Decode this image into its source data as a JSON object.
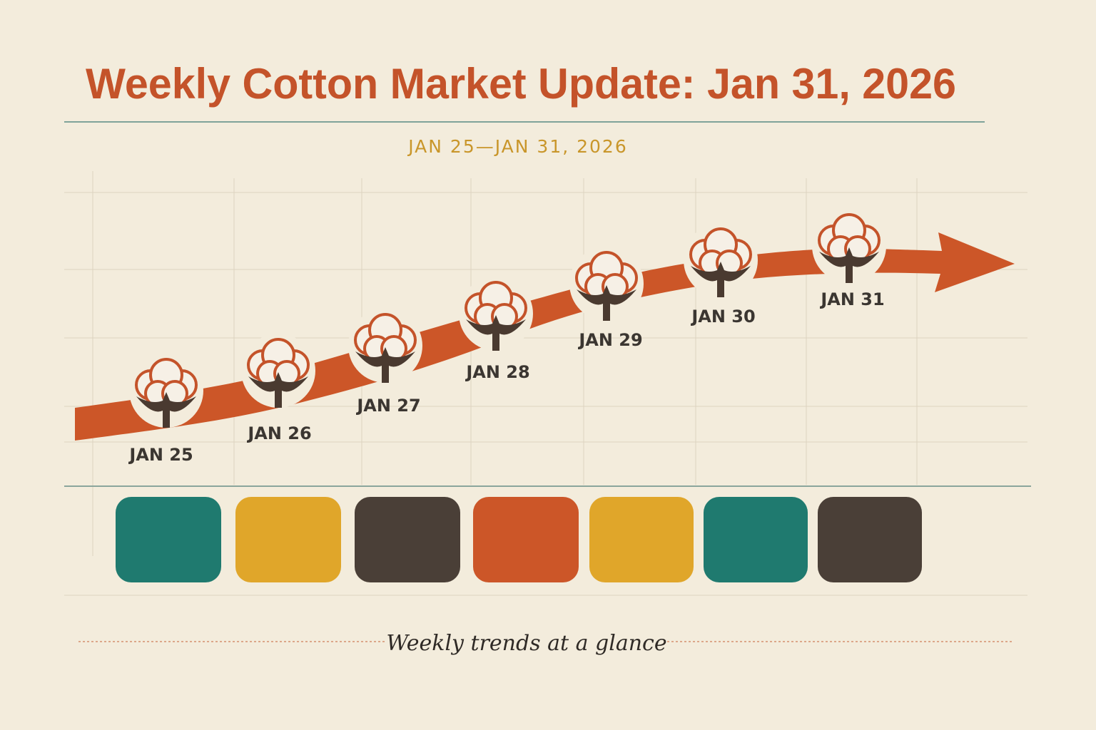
{
  "header": {
    "title": "Weekly Cotton Market Update: Jan 31, 2026",
    "subtitle": "JAN 25—JAN 31, 2026"
  },
  "timeline": {
    "labels": [
      "JAN 25",
      "JAN 26",
      "JAN 27",
      "JAN 28",
      "JAN 29",
      "JAN 30",
      "JAN 31"
    ]
  },
  "footer": {
    "caption": "Weekly trends at a glance"
  }
}
